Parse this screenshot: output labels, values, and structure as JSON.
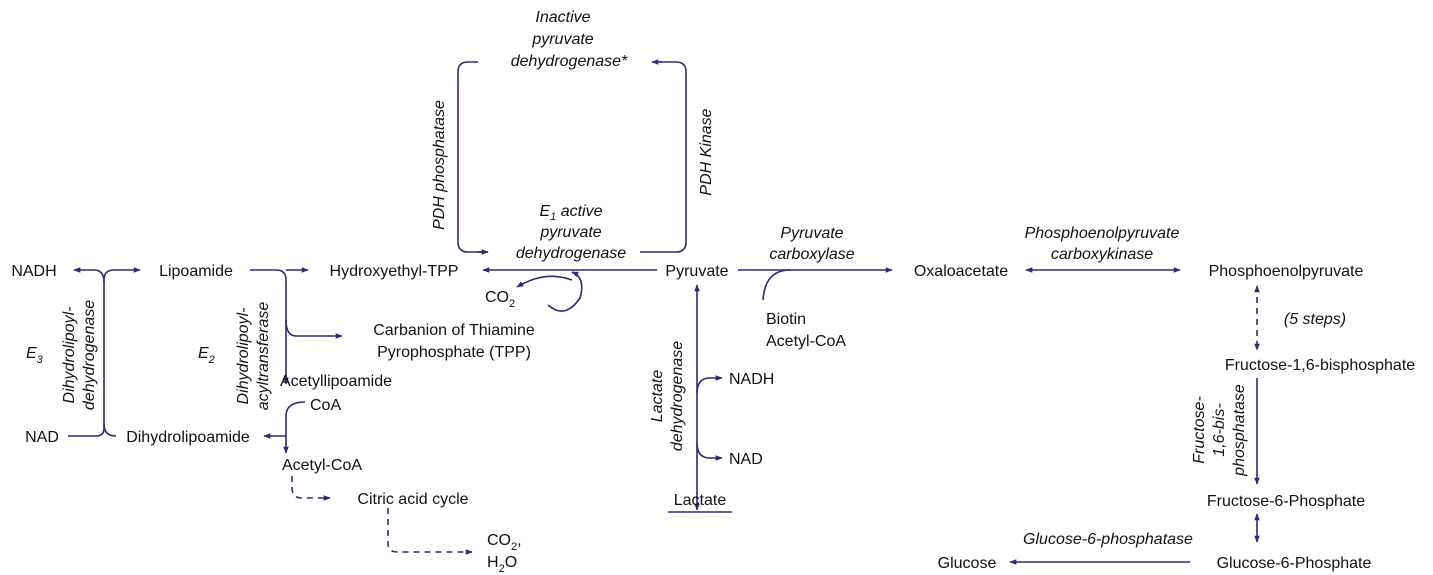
{
  "diagram": {
    "colors": {
      "arrow": "#2e2a73",
      "text": "#111111",
      "background": "#ffffff"
    },
    "nodes": {
      "inactive_pdh": [
        "Inactive",
        "pyruvate",
        "dehydrogenase*"
      ],
      "active_pdh": [
        "E",
        "1",
        " active",
        "pyruvate",
        "dehydrogenase"
      ],
      "pyruvate": "Pyruvate",
      "hydroxyethyl_tpp": "Hydroxyethyl-TPP",
      "co2_left": [
        "CO",
        "2"
      ],
      "carbanion_tpp": [
        "Carbanion of Thiamine",
        "Pyrophosphate (TPP)"
      ],
      "lipoamide": "Lipoamide",
      "nadh_left": "NADH",
      "nad_left": "NAD",
      "dihydrolipoamide": "Dihydrolipoamide",
      "acetyllipoamide": "Acetyllipoamide",
      "coa": "CoA",
      "acetyl_coa": "Acetyl-CoA",
      "citric_acid_cycle": "Citric acid cycle",
      "co2_h2o": [
        "CO",
        "2",
        ",",
        "H",
        "2",
        "O"
      ],
      "biotin": "Biotin",
      "acetyl_coa_cofactor": "Acetyl-CoA",
      "oxaloacetate": "Oxaloacetate",
      "phosphoenolpyruvate": "Phosphoenolpyruvate",
      "five_steps": "(5 steps)",
      "fructose_16_bp": "Fructose-1,6-bisphosphate",
      "fructose_6p": "Fructose-6-Phosphate",
      "glucose_6p": "Glucose-6-Phosphate",
      "glucose": "Glucose",
      "nadh_right": "NADH",
      "nad_right": "NAD",
      "lactate": "Lactate"
    },
    "enzymes": {
      "pdh_phosphatase": "PDH phosphatase",
      "pdh_kinase": "PDH Kinase",
      "dihydrolipoyl_dehydrogenase": [
        "Dihydrolipoyl-",
        "dehydrogenase"
      ],
      "e3": [
        "E",
        "3"
      ],
      "dihydrolipoyl_acyltransferase": [
        "Dihydrolipoyl-",
        "acyltransferase"
      ],
      "e2": [
        "E",
        "2"
      ],
      "pyruvate_carboxylase": [
        "Pyruvate",
        "carboxylase"
      ],
      "pepck": [
        "Phosphoenolpyruvate",
        "carboxykinase"
      ],
      "lactate_dehydrogenase": [
        "Lactate",
        "dehydrogenase"
      ],
      "fructose_bisphosphatase": [
        "Fructose-",
        "1,6-bis-",
        "phosphatase"
      ],
      "glucose_6_phosphatase": "Glucose-6-phosphatase"
    }
  }
}
